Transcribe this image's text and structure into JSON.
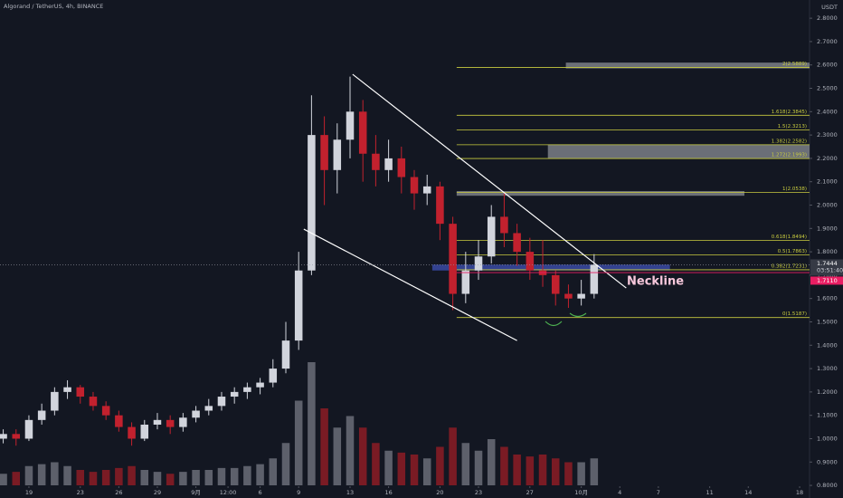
{
  "chart_data": {
    "type": "candlestick",
    "title": "Algorand / TetherUS, 4h, BINANCE",
    "y_unit": "USDT",
    "up_color": "#d1d4dc",
    "down_color": "#c2212e",
    "volume_up_color": "#5d606b",
    "volume_down_color": "#7a1b24",
    "x": [
      -2,
      -1,
      0,
      1,
      2,
      3,
      4,
      5,
      6,
      7,
      8,
      9,
      10,
      11,
      12,
      13,
      14,
      15,
      16,
      17,
      18,
      19,
      20,
      21,
      22,
      23,
      24,
      25,
      26,
      27,
      28,
      29,
      30,
      31,
      32,
      33,
      34,
      35,
      36,
      37,
      38,
      39,
      40,
      41,
      42,
      43,
      44
    ],
    "open": [
      1.0,
      1.02,
      1.0,
      1.08,
      1.12,
      1.2,
      1.22,
      1.18,
      1.14,
      1.1,
      1.05,
      1.0,
      1.06,
      1.08,
      1.05,
      1.09,
      1.12,
      1.14,
      1.18,
      1.2,
      1.22,
      1.24,
      1.3,
      1.42,
      1.72,
      2.3,
      2.15,
      2.28,
      2.4,
      2.22,
      2.15,
      2.2,
      2.12,
      2.05,
      2.08,
      1.92,
      1.62,
      1.72,
      1.78,
      1.95,
      1.88,
      1.8,
      1.72,
      1.7,
      1.62,
      1.6,
      1.62
    ],
    "high": [
      1.04,
      1.04,
      1.1,
      1.15,
      1.22,
      1.25,
      1.23,
      1.2,
      1.16,
      1.12,
      1.07,
      1.08,
      1.11,
      1.1,
      1.11,
      1.14,
      1.17,
      1.2,
      1.22,
      1.24,
      1.26,
      1.34,
      1.5,
      1.8,
      2.47,
      2.38,
      2.35,
      2.55,
      2.45,
      2.3,
      2.28,
      2.25,
      2.15,
      2.13,
      2.1,
      1.95,
      1.8,
      1.85,
      2.0,
      2.05,
      1.92,
      1.86,
      1.85,
      1.72,
      1.66,
      1.68,
      1.79
    ],
    "low": [
      0.98,
      0.97,
      0.99,
      1.06,
      1.1,
      1.17,
      1.15,
      1.12,
      1.08,
      1.03,
      0.97,
      0.99,
      1.04,
      1.02,
      1.03,
      1.07,
      1.1,
      1.12,
      1.15,
      1.17,
      1.19,
      1.22,
      1.28,
      1.38,
      1.7,
      2.0,
      2.05,
      2.2,
      2.1,
      2.08,
      2.1,
      2.05,
      1.98,
      2.0,
      1.85,
      1.55,
      1.58,
      1.68,
      1.75,
      1.82,
      1.74,
      1.68,
      1.65,
      1.57,
      1.56,
      1.57,
      1.6
    ],
    "close": [
      1.02,
      1.0,
      1.08,
      1.12,
      1.2,
      1.22,
      1.18,
      1.14,
      1.1,
      1.05,
      1.0,
      1.06,
      1.08,
      1.05,
      1.09,
      1.12,
      1.14,
      1.18,
      1.2,
      1.22,
      1.24,
      1.3,
      1.42,
      1.72,
      2.3,
      2.15,
      2.28,
      2.4,
      2.22,
      2.15,
      2.2,
      2.12,
      2.05,
      2.08,
      1.92,
      1.62,
      1.72,
      1.78,
      1.95,
      1.88,
      1.8,
      1.72,
      1.7,
      1.62,
      1.6,
      1.62,
      1.7444
    ],
    "volume": [
      30,
      35,
      50,
      55,
      60,
      50,
      40,
      35,
      40,
      45,
      50,
      40,
      35,
      30,
      35,
      40,
      40,
      45,
      45,
      50,
      55,
      70,
      110,
      220,
      320,
      200,
      150,
      180,
      150,
      110,
      90,
      85,
      80,
      70,
      100,
      150,
      110,
      90,
      120,
      100,
      80,
      75,
      80,
      70,
      60,
      60,
      70
    ],
    "xlim": [
      -2.25,
      60.77
    ],
    "xticks": [
      {
        "value": 0,
        "label": "19"
      },
      {
        "value": 4,
        "label": "23"
      },
      {
        "value": 7,
        "label": "26"
      },
      {
        "value": 10,
        "label": "29"
      },
      {
        "value": 13,
        "label": "9月"
      },
      {
        "value": 15.5,
        "label": "12:00"
      },
      {
        "value": 18,
        "label": "6"
      },
      {
        "value": 21,
        "label": "9"
      },
      {
        "value": 25,
        "label": "13"
      },
      {
        "value": 28,
        "label": "16"
      },
      {
        "value": 32,
        "label": "20"
      },
      {
        "value": 35,
        "label": "23"
      },
      {
        "value": 39,
        "label": "27"
      },
      {
        "value": 43,
        "label": "10月"
      },
      {
        "value": 46,
        "label": "4"
      },
      {
        "value": 49,
        "label": "7"
      },
      {
        "value": 53,
        "label": "11"
      },
      {
        "value": 56,
        "label": "14"
      },
      {
        "value": 60,
        "label": "18"
      }
    ],
    "ylim": [
      0.746,
      2.878
    ],
    "yticks": [
      {
        "value": 0.8,
        "label": "0.8000"
      },
      {
        "value": 0.9,
        "label": "0.9000"
      },
      {
        "value": 1.0,
        "label": "1.0000"
      },
      {
        "value": 1.1,
        "label": "1.1000"
      },
      {
        "value": 1.2,
        "label": "1.2000"
      },
      {
        "value": 1.3,
        "label": "1.3000"
      },
      {
        "value": 1.4,
        "label": "1.4000"
      },
      {
        "value": 1.5,
        "label": "1.5000"
      },
      {
        "value": 1.6,
        "label": "1.6000"
      },
      {
        "value": 1.7,
        "label": "1.7000"
      },
      {
        "value": 1.8,
        "label": "1.8000"
      },
      {
        "value": 1.9,
        "label": "1.9000"
      },
      {
        "value": 2.0,
        "label": "2.0000"
      },
      {
        "value": 2.1,
        "label": "2.1000"
      },
      {
        "value": 2.2,
        "label": "2.2000"
      },
      {
        "value": 2.3,
        "label": "2.3000"
      },
      {
        "value": 2.4,
        "label": "2.4000"
      },
      {
        "value": 2.5,
        "label": "2.5000"
      },
      {
        "value": 2.6,
        "label": "2.6000"
      },
      {
        "value": 2.7,
        "label": "2.7000"
      },
      {
        "value": 2.8,
        "label": "2.8000"
      }
    ],
    "grid": false,
    "fib_levels": {
      "start": 33.3,
      "color": "#c9cc3f",
      "levels": [
        {
          "value": 1.5187,
          "label": "0(1.5187)"
        },
        {
          "value": 1.7231,
          "label": "0.382(1.7231)"
        },
        {
          "value": 1.7863,
          "label": "0.5(1.7863)"
        },
        {
          "value": 1.8494,
          "label": "0.618(1.8494)"
        },
        {
          "value": 2.0538,
          "label": "1(2.0538)"
        },
        {
          "value": 2.1993,
          "label": "1.272(2.1993)"
        },
        {
          "value": 2.2582,
          "label": "1.382(2.2582)"
        },
        {
          "value": 2.3213,
          "label": "1.5(2.3213)"
        },
        {
          "value": 2.3845,
          "label": "1.618(2.3845)"
        },
        {
          "value": 2.5889,
          "label": "2(2.5889)"
        }
      ]
    },
    "zones": [
      {
        "x": [
          41.8,
          60.77
        ],
        "y": [
          2.585,
          2.61
        ],
        "color": "#8a8d94"
      },
      {
        "x": [
          40.4,
          60.77
        ],
        "y": [
          2.2,
          2.26
        ],
        "color": "#8a8d94"
      },
      {
        "x": [
          33.3,
          55.7
        ],
        "y": [
          2.04,
          2.06
        ],
        "color": "#8a8d94"
      },
      {
        "x": [
          31.4,
          49.9
        ],
        "y": [
          1.72,
          1.745
        ],
        "color": "#3f51b5"
      }
    ],
    "trendlines": [
      {
        "x": [
          25.2,
          46.5
        ],
        "y": [
          2.56,
          1.645
        ],
        "color": "#ffffff"
      },
      {
        "x": [
          21.4,
          38
        ],
        "y": [
          1.897,
          1.42
        ],
        "color": "#ffffff"
      }
    ],
    "annotation": "Neckline",
    "last_price": {
      "value": 1.7444,
      "label": "1.7444"
    },
    "countdown": "03:51:40",
    "marker_price": {
      "value": 1.711,
      "label": "1.7110"
    }
  }
}
